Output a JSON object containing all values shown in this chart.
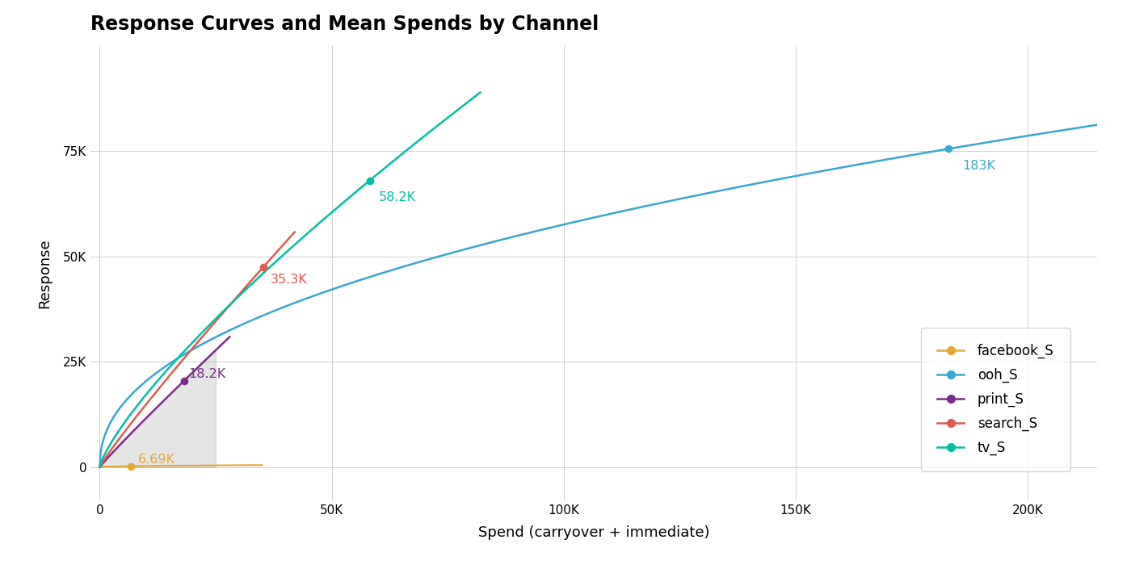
{
  "title": "Response Curves and Mean Spends by Channel",
  "xlabel": "Spend (carryover + immediate)",
  "ylabel": "Response",
  "background_color": "#ffffff",
  "plot_bg_color": "#ffffff",
  "grid_color": "#d0d0d0",
  "channels": {
    "facebook_S": {
      "color": "#E8A838",
      "mean_spend": 6690,
      "mean_response": 200,
      "label": "6.69K",
      "x_max": 35000,
      "A": 0.03,
      "gamma": 0.5
    },
    "ooh_S": {
      "color": "#39A7D0",
      "mean_spend": 183000,
      "mean_response": 75500,
      "label": "183K",
      "x_max": 215000,
      "A": 1.0,
      "gamma": 0.45
    },
    "print_S": {
      "color": "#7B2D8B",
      "mean_spend": 18200,
      "mean_response": 20500,
      "label": "18.2K",
      "x_max": 28000,
      "A": 1.0,
      "gamma": 0.95
    },
    "search_S": {
      "color": "#E05A4E",
      "mean_spend": 35300,
      "mean_response": 47500,
      "label": "35.3K",
      "x_max": 42000,
      "A": 1.0,
      "gamma": 0.92
    },
    "tv_S": {
      "color": "#00BFA5",
      "mean_spend": 58200,
      "mean_response": 68000,
      "label": "58.2K",
      "x_max": 82000,
      "A": 1.0,
      "gamma": 0.78
    }
  },
  "xlim": [
    -2000,
    215000
  ],
  "ylim": [
    -8000,
    100000
  ],
  "xticks": [
    0,
    50000,
    100000,
    150000,
    200000
  ],
  "xtick_labels": [
    "0",
    "50K",
    "100K",
    "150K",
    "200K"
  ],
  "yticks": [
    0,
    25000,
    50000,
    75000
  ],
  "ytick_labels": [
    "0",
    "25K",
    "50K",
    "75K"
  ],
  "figsize": [
    14.0,
    7.05
  ],
  "dpi": 100
}
